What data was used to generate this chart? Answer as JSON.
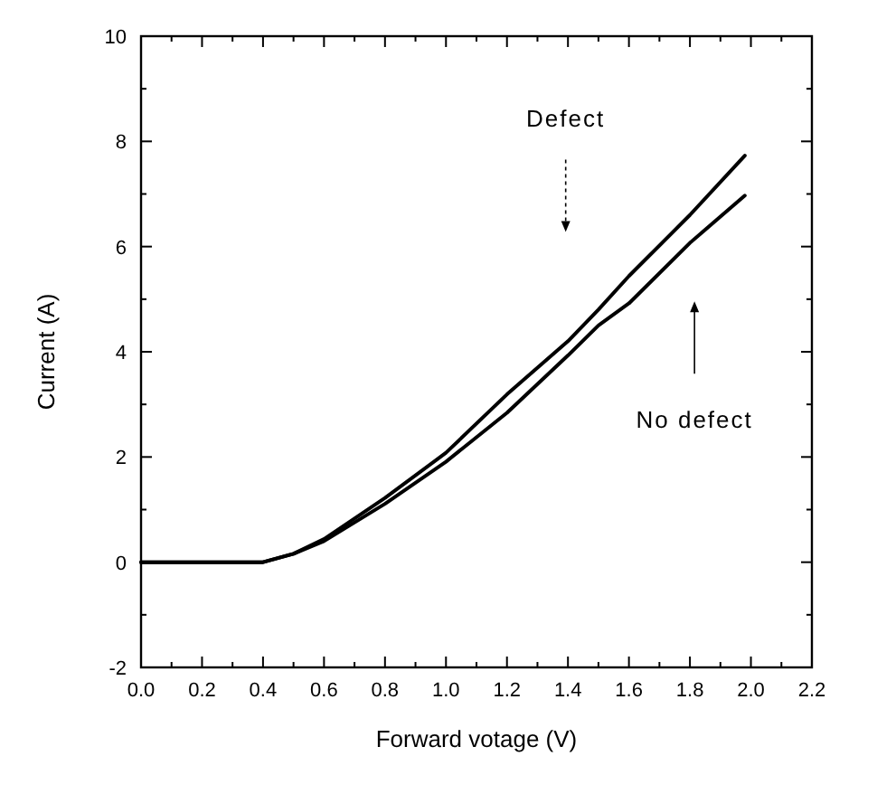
{
  "chart_data": {
    "type": "line",
    "xlabel": "Forward votage (V)",
    "ylabel": "Current (A)",
    "xlim": [
      0,
      2.2
    ],
    "xticks": [
      {
        "value": 0,
        "label": "0.0"
      },
      {
        "value": 0.2,
        "label": "0.2"
      },
      {
        "value": 0.4,
        "label": "0.4"
      },
      {
        "value": 0.6,
        "label": "0.6"
      },
      {
        "value": 0.8,
        "label": "0.8"
      },
      {
        "value": 1,
        "label": "1.0"
      },
      {
        "value": 1.2,
        "label": "1.2"
      },
      {
        "value": 1.4,
        "label": "1.4"
      },
      {
        "value": 1.6,
        "label": "1.6"
      },
      {
        "value": 1.8,
        "label": "1.8"
      },
      {
        "value": 2,
        "label": "2.0"
      },
      {
        "value": 2.2,
        "label": "2.2"
      }
    ],
    "ylim": [
      -2,
      10
    ],
    "yticks": [
      -2,
      0,
      2,
      4,
      6,
      8,
      10
    ],
    "x": [
      0,
      0.2,
      0.4,
      0.5,
      0.6,
      0.8,
      1.0,
      1.2,
      1.4,
      1.5,
      1.6,
      1.8,
      1.98
    ],
    "series": [
      {
        "color": "#000000",
        "values": [
          0,
          0,
          0,
          0.16,
          0.44,
          1.22,
          2.08,
          3.19,
          4.2,
          4.8,
          5.44,
          6.6,
          7.73
        ]
      },
      {
        "color": "#000000",
        "values": [
          0,
          0,
          0,
          0.16,
          0.4,
          1.11,
          1.91,
          2.84,
          3.93,
          4.5,
          4.92,
          6.07,
          6.97
        ]
      }
    ],
    "annotations": [
      "Defect",
      "No defect"
    ],
    "grid": false,
    "line_style": "solid"
  }
}
